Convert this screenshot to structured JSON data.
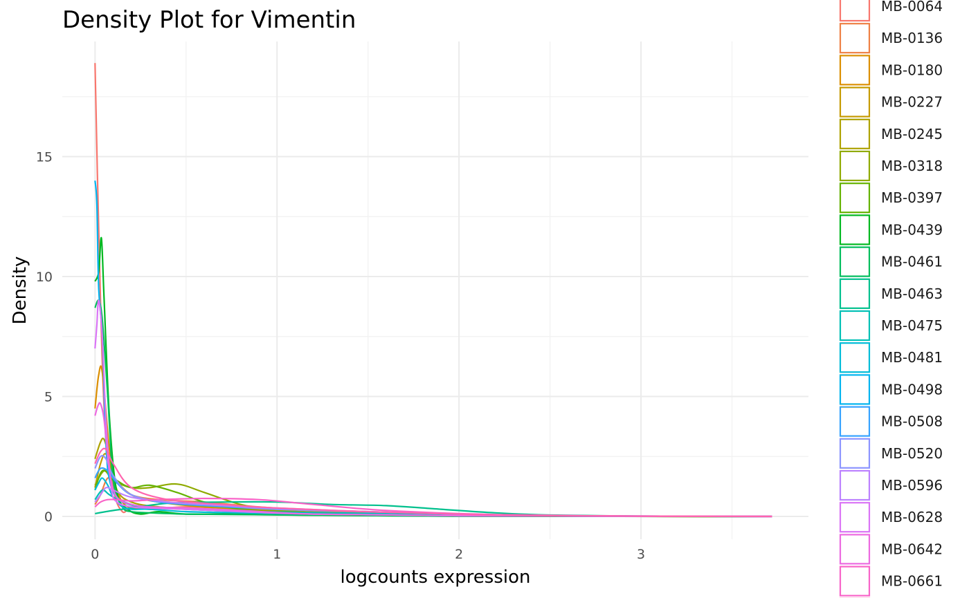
{
  "chart_data": {
    "type": "line",
    "title": "Density Plot for Vimentin",
    "xlabel": "logcounts expression",
    "ylabel": "Density",
    "xlim": [
      -0.18,
      3.92
    ],
    "ylim": [
      -0.95,
      19.8
    ],
    "x_ticks": [
      0,
      1,
      2,
      3
    ],
    "x_tick_labels": [
      "0",
      "1",
      "2",
      "3"
    ],
    "y_ticks": [
      0,
      5,
      10,
      15
    ],
    "y_tick_labels": [
      "0",
      "5",
      "10",
      "15"
    ],
    "grid": true,
    "legend_position": "right",
    "series": [
      {
        "name": "MB-0064",
        "color": "#F8766D",
        "x": [
          0,
          0.02,
          0.05,
          0.1,
          0.15,
          0.2,
          0.3,
          0.5,
          0.8,
          1.2,
          1.8,
          2.5,
          3.72
        ],
        "y": [
          18.9,
          12.0,
          4.5,
          1.2,
          0.2,
          0.4,
          0.3,
          0.4,
          0.3,
          0.15,
          0.05,
          0.01,
          0
        ]
      },
      {
        "name": "MB-0136",
        "color": "#EE8044",
        "x": [
          0,
          0.03,
          0.07,
          0.12,
          0.2,
          0.35,
          0.6,
          0.9,
          1.3,
          1.8,
          2.5,
          3.72
        ],
        "y": [
          0.5,
          0.9,
          1.6,
          1.4,
          0.9,
          0.7,
          0.6,
          0.4,
          0.2,
          0.08,
          0.02,
          0
        ]
      },
      {
        "name": "MB-0180",
        "color": "#DB8E00",
        "x": [
          0,
          0.02,
          0.04,
          0.08,
          0.12,
          0.18,
          0.3,
          0.5,
          0.8,
          1.2,
          1.8,
          2.5,
          3.72
        ],
        "y": [
          4.5,
          5.9,
          6.0,
          2.7,
          1.1,
          0.4,
          0.35,
          0.3,
          0.2,
          0.1,
          0.05,
          0.01,
          0
        ]
      },
      {
        "name": "MB-0227",
        "color": "#C59A00",
        "x": [
          0,
          0.03,
          0.06,
          0.1,
          0.2,
          0.35,
          0.6,
          1.0,
          1.5,
          2.2,
          3.72
        ],
        "y": [
          1.2,
          2.2,
          2.6,
          1.7,
          0.9,
          0.6,
          0.4,
          0.25,
          0.1,
          0.02,
          0
        ]
      },
      {
        "name": "MB-0245",
        "color": "#AEA200",
        "x": [
          0,
          0.03,
          0.05,
          0.08,
          0.12,
          0.2,
          0.35,
          0.6,
          1.0,
          1.6,
          2.4,
          3.72
        ],
        "y": [
          2.4,
          3.1,
          3.2,
          2.4,
          1.1,
          0.6,
          0.4,
          0.3,
          0.15,
          0.05,
          0.01,
          0
        ]
      },
      {
        "name": "MB-0318",
        "color": "#8FAA00",
        "x": [
          0,
          0.05,
          0.1,
          0.2,
          0.3,
          0.45,
          0.6,
          0.8,
          1.0,
          1.3,
          1.7,
          2.2,
          3.72
        ],
        "y": [
          1.3,
          1.9,
          1.5,
          1.2,
          1.2,
          1.35,
          1.0,
          0.5,
          0.25,
          0.12,
          0.05,
          0.01,
          0
        ]
      },
      {
        "name": "MB-0397",
        "color": "#64B200",
        "x": [
          0,
          0.03,
          0.06,
          0.12,
          0.2,
          0.3,
          0.45,
          0.6,
          0.8,
          1.1,
          1.6,
          2.3,
          3.72
        ],
        "y": [
          1.1,
          1.8,
          1.9,
          1.5,
          1.2,
          1.3,
          1.0,
          0.6,
          0.3,
          0.15,
          0.05,
          0.01,
          0
        ]
      },
      {
        "name": "MB-0439",
        "color": "#00B81F",
        "x": [
          0,
          0.02,
          0.035,
          0.05,
          0.08,
          0.12,
          0.18,
          0.25,
          0.35,
          0.5,
          0.8,
          1.2,
          2.0,
          3.72
        ],
        "y": [
          9.8,
          10.2,
          11.6,
          9.0,
          4.0,
          1.0,
          0.3,
          0.1,
          0.2,
          0.1,
          0.1,
          0.05,
          0.01,
          0
        ]
      },
      {
        "name": "MB-0461",
        "color": "#00BD5C",
        "x": [
          0,
          0.02,
          0.04,
          0.07,
          0.1,
          0.15,
          0.2,
          0.3,
          0.5,
          0.8,
          1.2,
          2.0,
          3.72
        ],
        "y": [
          8.7,
          9.0,
          8.2,
          5.0,
          1.5,
          0.4,
          0.2,
          0.15,
          0.1,
          0.08,
          0.05,
          0.01,
          0
        ]
      },
      {
        "name": "MB-0463",
        "color": "#00C08D",
        "x": [
          0,
          0.1,
          0.2,
          0.4,
          0.7,
          1.0,
          1.3,
          1.6,
          1.9,
          2.2,
          2.5,
          3.0,
          3.72
        ],
        "y": [
          0.12,
          0.25,
          0.35,
          0.55,
          0.6,
          0.6,
          0.5,
          0.45,
          0.3,
          0.15,
          0.06,
          0.01,
          0
        ]
      },
      {
        "name": "MB-0475",
        "color": "#00C0B5",
        "x": [
          0,
          0.04,
          0.08,
          0.15,
          0.25,
          0.4,
          0.6,
          0.9,
          1.3,
          1.9,
          2.6,
          3.72
        ],
        "y": [
          0.7,
          1.1,
          0.9,
          0.6,
          0.4,
          0.35,
          0.3,
          0.2,
          0.15,
          0.08,
          0.02,
          0
        ]
      },
      {
        "name": "MB-0481",
        "color": "#00BCD8",
        "x": [
          0,
          0.02,
          0.04,
          0.07,
          0.1,
          0.15,
          0.2,
          0.3,
          0.5,
          0.8,
          1.2,
          2.0,
          3.72
        ],
        "y": [
          1.1,
          1.4,
          1.6,
          1.3,
          0.8,
          0.4,
          0.3,
          0.3,
          0.2,
          0.15,
          0.1,
          0.03,
          0
        ]
      },
      {
        "name": "MB-0498",
        "color": "#00B4EF",
        "x": [
          0,
          0.01,
          0.02,
          0.04,
          0.06,
          0.08,
          0.12,
          0.2,
          0.3,
          0.5,
          0.8,
          1.2,
          2.0,
          3.72
        ],
        "y": [
          14.0,
          13.0,
          9.5,
          7.5,
          3.0,
          1.5,
          0.8,
          0.5,
          0.4,
          0.3,
          0.2,
          0.1,
          0.03,
          0
        ]
      },
      {
        "name": "MB-0508",
        "color": "#35A2FF",
        "x": [
          0,
          0.03,
          0.07,
          0.12,
          0.2,
          0.35,
          0.6,
          1.0,
          1.5,
          2.0,
          2.6,
          3.72
        ],
        "y": [
          1.6,
          2.0,
          1.9,
          1.4,
          0.9,
          0.6,
          0.45,
          0.3,
          0.2,
          0.1,
          0.03,
          0
        ]
      },
      {
        "name": "MB-0520",
        "color": "#8C94FF",
        "x": [
          0,
          0.03,
          0.06,
          0.1,
          0.2,
          0.4,
          0.7,
          1.0,
          1.5,
          2.0,
          2.6,
          3.72
        ],
        "y": [
          2.0,
          2.5,
          2.4,
          1.7,
          0.9,
          0.6,
          0.45,
          0.3,
          0.2,
          0.1,
          0.03,
          0
        ]
      },
      {
        "name": "MB-0596",
        "color": "#BC81FF",
        "x": [
          0,
          0.03,
          0.06,
          0.1,
          0.2,
          0.4,
          0.7,
          1.0,
          1.5,
          2.0,
          2.6,
          3.72
        ],
        "y": [
          0.6,
          0.9,
          1.2,
          1.1,
          0.8,
          0.6,
          0.45,
          0.35,
          0.2,
          0.1,
          0.03,
          0
        ]
      },
      {
        "name": "MB-0628",
        "color": "#DA74F6",
        "x": [
          0,
          0.01,
          0.02,
          0.04,
          0.06,
          0.09,
          0.12,
          0.2,
          0.3,
          0.5,
          0.8,
          1.2,
          2.0,
          3.72
        ],
        "y": [
          7.0,
          8.0,
          9.0,
          7.5,
          4.0,
          1.2,
          0.6,
          0.4,
          0.35,
          0.3,
          0.2,
          0.1,
          0.03,
          0
        ]
      },
      {
        "name": "MB-0642",
        "color": "#EC69E0",
        "x": [
          0,
          0.015,
          0.03,
          0.05,
          0.08,
          0.12,
          0.2,
          0.3,
          0.5,
          0.8,
          1.2,
          2.0,
          3.72
        ],
        "y": [
          4.2,
          4.6,
          4.7,
          4.0,
          1.8,
          0.8,
          0.5,
          0.4,
          0.35,
          0.25,
          0.1,
          0.03,
          0
        ]
      },
      {
        "name": "MB-0661",
        "color": "#F864C8",
        "x": [
          0,
          0.03,
          0.07,
          0.12,
          0.2,
          0.35,
          0.6,
          0.9,
          1.2,
          1.6,
          2.2,
          3.0,
          3.72
        ],
        "y": [
          0.4,
          0.6,
          0.7,
          0.7,
          0.65,
          0.7,
          0.75,
          0.7,
          0.5,
          0.25,
          0.08,
          0.01,
          0
        ]
      },
      {
        "name": "",
        "color": "#FF64AE",
        "x": [
          0,
          0.03,
          0.06,
          0.1,
          0.2,
          0.4,
          0.7,
          1.0,
          1.5,
          2.0,
          2.6,
          3.72
        ],
        "y": [
          2.2,
          2.7,
          2.8,
          2.2,
          1.2,
          0.7,
          0.5,
          0.35,
          0.2,
          0.1,
          0.03,
          0
        ]
      }
    ]
  }
}
